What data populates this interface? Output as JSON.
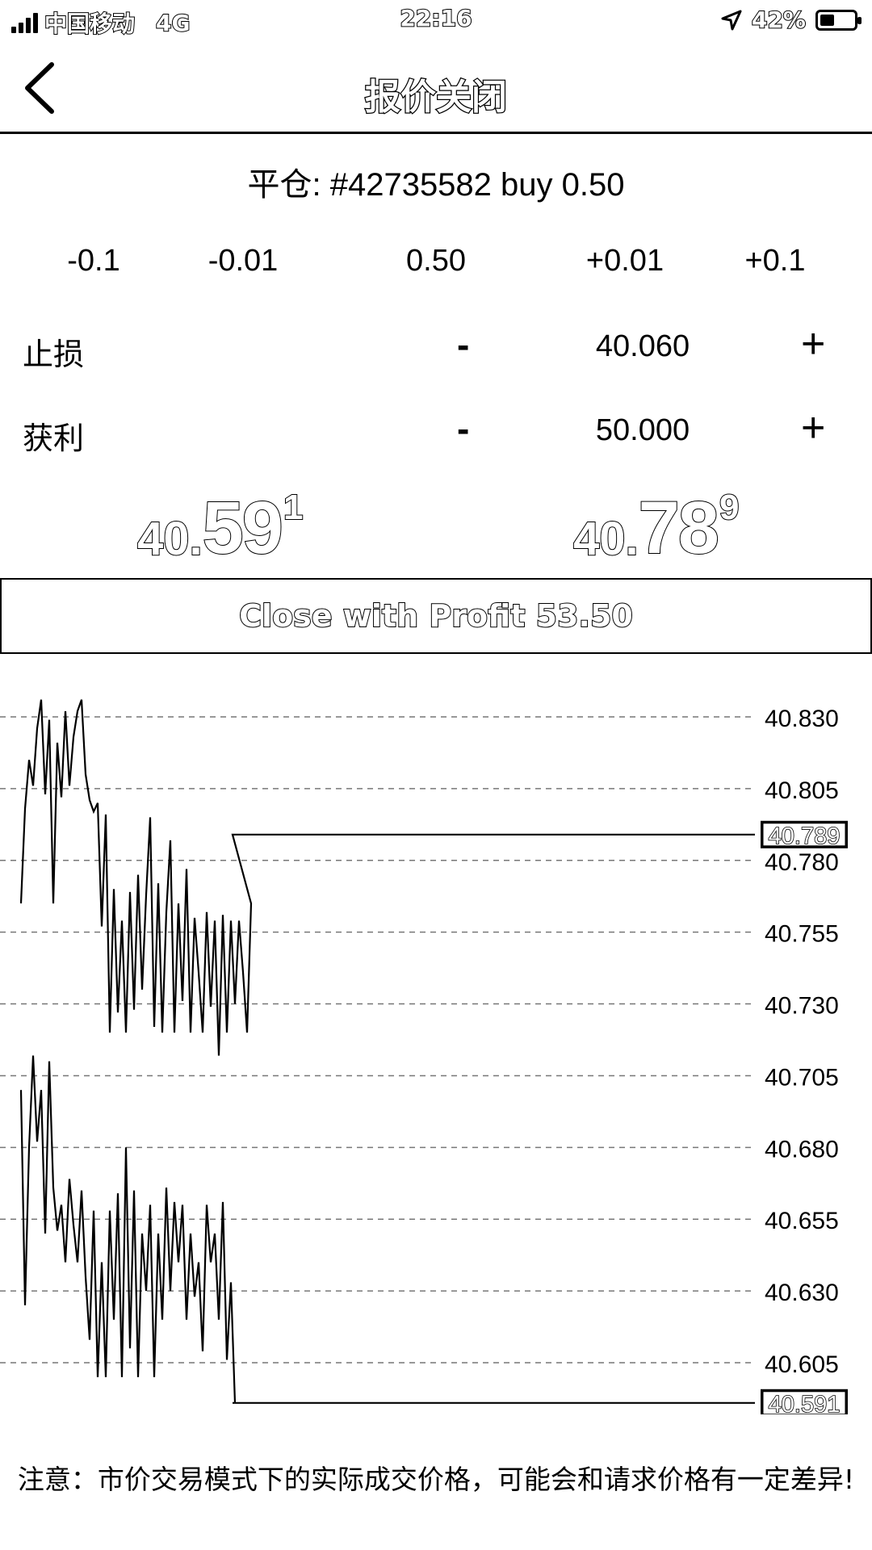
{
  "status_bar": {
    "carrier": "中国移动",
    "network": "4G",
    "time": "22:16",
    "battery": "42%",
    "battery_level": 0.42
  },
  "nav": {
    "title": "报价关闭",
    "back_icon": "chevron-left-icon"
  },
  "order": {
    "line": "平仓: #42735582 buy 0.50"
  },
  "volume": {
    "minus_big": "-0.1",
    "minus_small": "-0.01",
    "value": "0.50",
    "plus_small": "+0.01",
    "plus_big": "+0.1"
  },
  "stop_loss": {
    "label": "止损",
    "minus": "-",
    "value": "40.060",
    "plus": "+"
  },
  "take_profit": {
    "label": "获利",
    "minus": "-",
    "value": "50.000",
    "plus": "+"
  },
  "bid": {
    "prefix": "40.",
    "main": "59",
    "sup": "1"
  },
  "ask": {
    "prefix": "40.",
    "main": "78",
    "sup": "9"
  },
  "close_button": "Close with Profit 53.50",
  "chart_data": {
    "type": "line",
    "y_ticks": [
      "40.830",
      "40.805",
      "40.780",
      "40.755",
      "40.730",
      "40.705",
      "40.680",
      "40.655",
      "40.630",
      "40.605"
    ],
    "ylim": [
      40.6,
      40.84
    ],
    "ask_current": "40.789",
    "bid_current": "40.591",
    "series": [
      {
        "values": [
          40.765,
          40.798,
          40.815,
          40.806,
          40.826,
          40.836,
          40.803,
          40.829,
          40.765,
          40.821,
          40.802,
          40.832,
          40.806,
          40.823,
          40.832,
          40.836,
          40.81,
          40.801,
          40.797,
          40.8,
          40.757,
          40.796,
          40.72,
          40.77,
          40.727,
          40.759,
          40.72,
          40.769,
          40.728,
          40.775,
          40.735,
          40.768,
          40.795,
          40.722,
          40.772,
          40.72,
          40.762,
          40.787,
          40.72,
          40.765,
          40.731,
          40.777,
          40.72,
          40.76,
          40.741,
          40.72,
          40.762,
          40.729,
          40.759,
          40.712,
          40.761,
          40.72,
          40.759,
          40.73,
          40.759,
          40.741,
          40.72,
          40.765,
          40.789,
          40.789,
          40.789,
          40.789,
          40.789,
          40.789,
          40.789,
          40.789,
          40.789,
          40.789,
          40.789,
          40.789,
          40.789,
          40.789,
          40.789,
          40.789,
          40.789,
          40.789,
          40.789,
          40.789,
          40.789,
          40.789,
          40.789,
          40.789,
          40.789,
          40.789,
          40.789,
          40.789,
          40.789,
          40.789,
          40.789,
          40.789,
          40.789,
          40.789,
          40.789,
          40.789,
          40.789,
          40.789,
          40.789,
          40.789,
          40.789,
          40.789
        ]
      },
      {
        "values": [
          40.7,
          40.625,
          40.68,
          40.712,
          40.682,
          40.7,
          40.65,
          40.71,
          40.666,
          40.651,
          40.66,
          40.64,
          40.669,
          40.653,
          40.64,
          40.665,
          40.635,
          40.613,
          40.658,
          40.6,
          40.64,
          40.6,
          40.658,
          40.62,
          40.664,
          40.6,
          40.68,
          40.61,
          40.665,
          40.6,
          40.65,
          40.63,
          40.66,
          40.6,
          40.65,
          40.62,
          40.666,
          40.63,
          40.661,
          40.64,
          40.66,
          40.62,
          40.65,
          40.628,
          40.64,
          40.609,
          40.66,
          40.64,
          40.65,
          40.62,
          40.661,
          40.606,
          40.633,
          40.591,
          40.591,
          40.591,
          40.591,
          40.591,
          40.591,
          40.591,
          40.591,
          40.591,
          40.591,
          40.591,
          40.591,
          40.591,
          40.591,
          40.591,
          40.591,
          40.591,
          40.591,
          40.591,
          40.591,
          40.591,
          40.591,
          40.591,
          40.591,
          40.591,
          40.591,
          40.591,
          40.591,
          40.591,
          40.591,
          40.591,
          40.591,
          40.591,
          40.591,
          40.591,
          40.591,
          40.591,
          40.591,
          40.591,
          40.591,
          40.591,
          40.591,
          40.591,
          40.591,
          40.591,
          40.591,
          40.591
        ]
      }
    ]
  },
  "notice": "注意：市价交易模式下的实际成交价格，可能会和请求价格有一定差异!"
}
